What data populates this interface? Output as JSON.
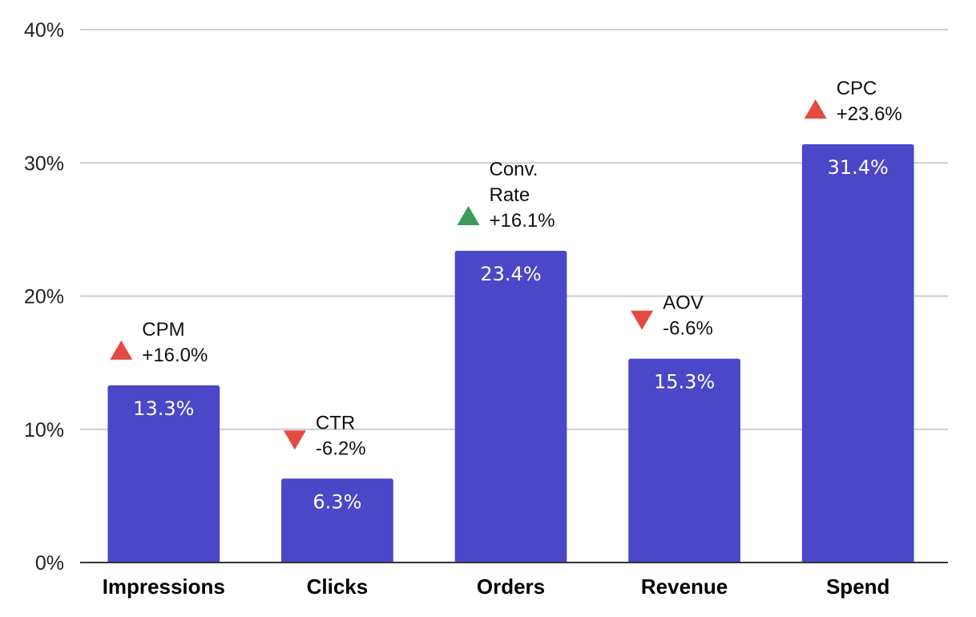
{
  "chart_data": {
    "type": "bar",
    "title": "",
    "xlabel": "",
    "ylabel": "",
    "ylim": [
      0,
      40
    ],
    "y_ticks": [
      0,
      10,
      20,
      30,
      40
    ],
    "y_tick_labels": [
      "0%",
      "10%",
      "20%",
      "30%",
      "40%"
    ],
    "grid": true,
    "legend": "none",
    "categories": [
      "Impressions",
      "Clicks",
      "Orders",
      "Revenue",
      "Spend"
    ],
    "values": [
      13.3,
      6.3,
      23.4,
      15.3,
      31.4
    ],
    "value_labels": [
      "13.3%",
      "6.3%",
      "23.4%",
      "15.3%",
      "31.4%"
    ],
    "annotations": [
      {
        "category": "Impressions",
        "lines": [
          "CPM",
          "+16.0%"
        ],
        "direction": "up",
        "color": "#e34b42"
      },
      {
        "category": "Clicks",
        "lines": [
          "CTR",
          "-6.2%"
        ],
        "direction": "down",
        "color": "#e34b42"
      },
      {
        "category": "Orders",
        "lines": [
          "Conv.",
          "Rate",
          "+16.1%"
        ],
        "direction": "up",
        "color": "#3d9a5e"
      },
      {
        "category": "Revenue",
        "lines": [
          "AOV",
          "-6.6%"
        ],
        "direction": "down",
        "color": "#e34b42"
      },
      {
        "category": "Spend",
        "lines": [
          "CPC",
          "+23.6%"
        ],
        "direction": "up",
        "color": "#e34b42"
      }
    ],
    "colors": {
      "bar": "#4a47c8",
      "grid": "#cccccc",
      "axis": "#333333",
      "bar_label": "#ffffff"
    }
  }
}
